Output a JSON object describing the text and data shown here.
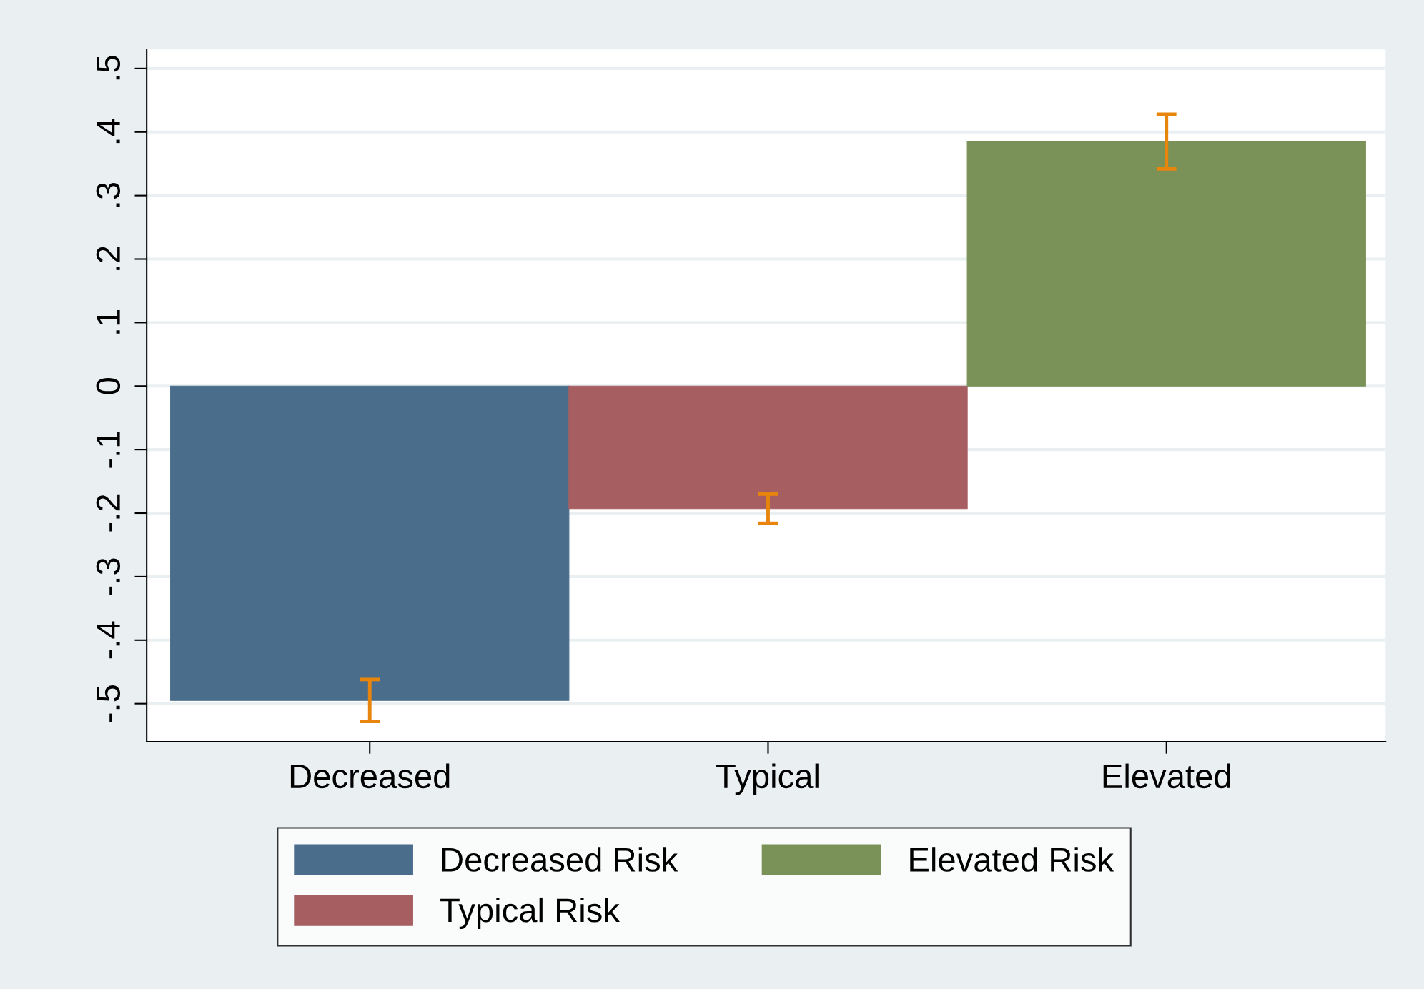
{
  "chart_data": {
    "type": "bar",
    "categories": [
      "Decreased",
      "Typical",
      "Elevated"
    ],
    "series": [
      {
        "name": "Decreased Risk",
        "color": "#4a6d8c",
        "values": [
          -0.495,
          null,
          null
        ],
        "errors": [
          0.033,
          null,
          null
        ]
      },
      {
        "name": "Typical Risk",
        "color": "#a65e61",
        "values": [
          null,
          -0.193,
          null
        ],
        "errors": [
          null,
          0.023,
          null
        ]
      },
      {
        "name": "Elevated Risk",
        "color": "#7a9157",
        "values": [
          null,
          null,
          0.385
        ],
        "errors": [
          null,
          null,
          0.043
        ]
      }
    ],
    "ylim": [
      -0.56,
      0.53
    ],
    "yticks": [
      {
        "value": -0.5,
        "label": "-.5"
      },
      {
        "value": -0.4,
        "label": "-.4"
      },
      {
        "value": -0.3,
        "label": "-.3"
      },
      {
        "value": -0.2,
        "label": "-.2"
      },
      {
        "value": -0.1,
        "label": "-.1"
      },
      0,
      {
        "value": 0.1,
        "label": ".1"
      },
      {
        "value": 0.2,
        "label": ".2"
      },
      {
        "value": 0.3,
        "label": ".3"
      },
      {
        "value": 0.4,
        "label": ".4"
      },
      {
        "value": 0.5,
        "label": ".5"
      }
    ],
    "grid": "y",
    "legend": "bottom"
  }
}
